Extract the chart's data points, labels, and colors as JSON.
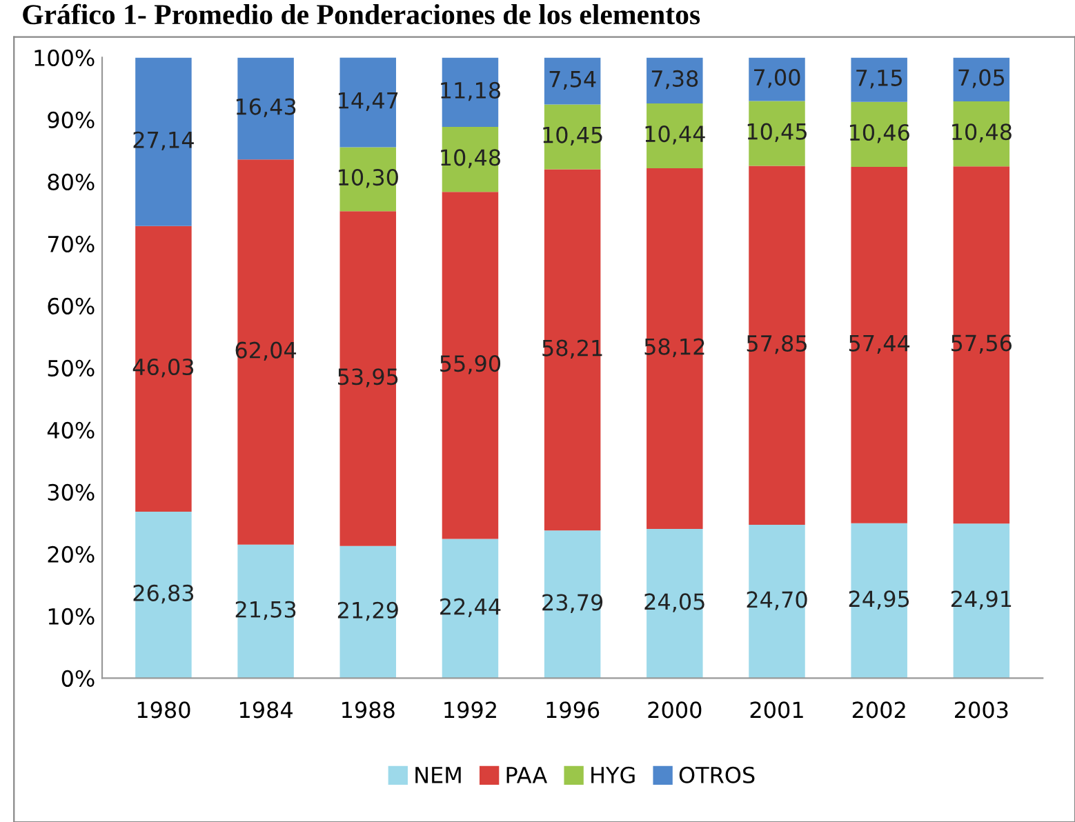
{
  "chart_data": {
    "type": "bar",
    "stacked": true,
    "title": "Gráfico 1- Promedio de Ponderaciones de los elementos",
    "categories": [
      "1980",
      "1984",
      "1988",
      "1992",
      "1996",
      "2000",
      "2001",
      "2002",
      "2003"
    ],
    "series": [
      {
        "name": "NEM",
        "color": "#9dd9ea",
        "values": [
          26.83,
          21.53,
          21.29,
          22.44,
          23.79,
          24.05,
          24.7,
          24.95,
          24.91
        ],
        "value_labels": [
          "26,83",
          "21,53",
          "21,29",
          "22,44",
          "23,79",
          "24,05",
          "24,70",
          "24,95",
          "24,91"
        ]
      },
      {
        "name": "PAA",
        "color": "#d9403b",
        "values": [
          46.03,
          62.04,
          53.95,
          55.9,
          58.21,
          58.12,
          57.85,
          57.44,
          57.56
        ],
        "value_labels": [
          "46,03",
          "62,04",
          "53,95",
          "55,90",
          "58,21",
          "58,12",
          "57,85",
          "57,44",
          "57,56"
        ]
      },
      {
        "name": "HYG",
        "color": "#9bc64a",
        "values": [
          null,
          null,
          10.3,
          10.48,
          10.45,
          10.44,
          10.45,
          10.46,
          10.48
        ],
        "value_labels": [
          null,
          null,
          "10,30",
          "10,48",
          "10,45",
          "10,44",
          "10,45",
          "10,46",
          "10,48"
        ]
      },
      {
        "name": "OTROS",
        "color": "#4f87cc",
        "values": [
          27.14,
          16.43,
          14.47,
          11.18,
          7.54,
          7.38,
          7.0,
          7.15,
          7.05
        ],
        "value_labels": [
          "27,14",
          "16,43",
          "14,47",
          "11,18",
          "7,54",
          "7,38",
          "7,00",
          "7,15",
          "7,05"
        ]
      }
    ],
    "ylim": [
      0,
      100
    ],
    "yticks": [
      {
        "value": 0,
        "label": "0%"
      },
      {
        "value": 10,
        "label": "10%"
      },
      {
        "value": 20,
        "label": "20%"
      },
      {
        "value": 30,
        "label": "30%"
      },
      {
        "value": 40,
        "label": "40%"
      },
      {
        "value": 50,
        "label": "50%"
      },
      {
        "value": 60,
        "label": "60%"
      },
      {
        "value": 70,
        "label": "70%"
      },
      {
        "value": 80,
        "label": "80%"
      },
      {
        "value": 90,
        "label": "90%"
      },
      {
        "value": 100,
        "label": "100%"
      }
    ],
    "grid": false,
    "legend": "bottom"
  }
}
